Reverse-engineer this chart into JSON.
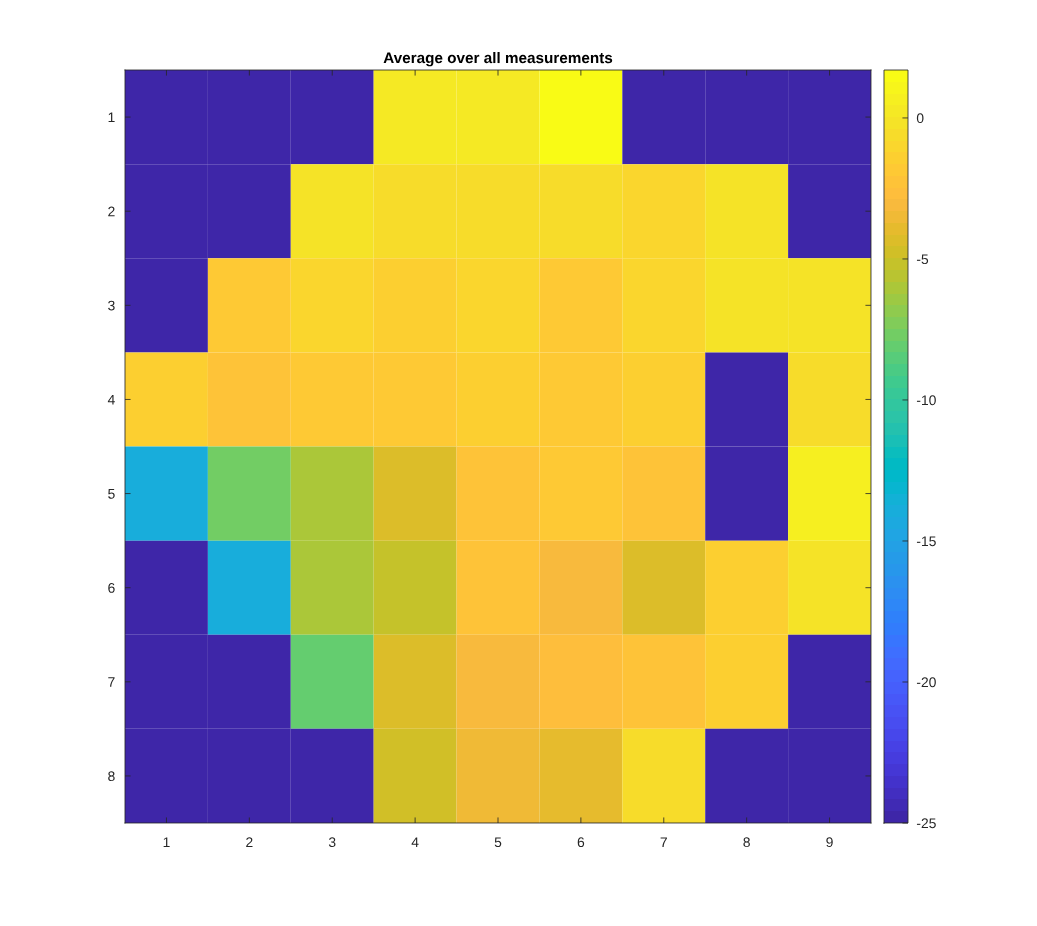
{
  "chart_data": {
    "type": "heatmap",
    "title": "Average over all measurements",
    "categories": [
      "1",
      "2",
      "3",
      "4",
      "5",
      "6",
      "7",
      "8",
      "9"
    ],
    "y_categories": [
      "1",
      "2",
      "3",
      "4",
      "5",
      "6",
      "7",
      "8"
    ],
    "cells": [
      [
        -25,
        -25,
        -25,
        0.2,
        0.4,
        1.7,
        -25,
        -25,
        -25
      ],
      [
        -25,
        -25,
        -0.3,
        -0.5,
        -0.4,
        -0.7,
        -1.0,
        -0.1,
        -25
      ],
      [
        -25,
        -1.7,
        -1.1,
        -1.3,
        -1.1,
        -1.9,
        -1.2,
        0.0,
        0.0
      ],
      [
        -1.6,
        -2.3,
        -1.9,
        -1.8,
        -1.4,
        -1.7,
        -1.3,
        -25,
        -0.4
      ],
      [
        -13.8,
        -7.5,
        -6.2,
        -4.4,
        -2.3,
        -1.8,
        -2.4,
        -25,
        0.5
      ],
      [
        -25,
        -14.0,
        -6.1,
        -5.2,
        -2.3,
        -3.0,
        -4.4,
        -1.6,
        -0.2
      ],
      [
        -25,
        -25,
        -8.0,
        -4.2,
        -2.9,
        -2.6,
        -2.2,
        -1.4,
        -25
      ],
      [
        -25,
        -25,
        -25,
        -4.6,
        -3.6,
        -3.8,
        -0.5,
        -25,
        -25
      ]
    ],
    "clim": [
      -25,
      1.7
    ],
    "cticks": [
      -25,
      -20,
      -15,
      -10,
      -5,
      0
    ]
  }
}
